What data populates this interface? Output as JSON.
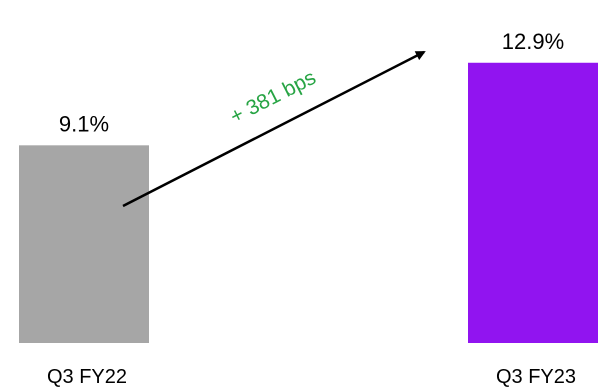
{
  "chart_data": {
    "type": "bar",
    "categories": [
      "Q3 FY22",
      "Q3 FY23"
    ],
    "values": [
      9.1,
      12.9
    ],
    "data_labels": [
      "9.1%",
      "12.9%"
    ],
    "unit": "%",
    "colors": [
      "#a6a6a6",
      "#9114f0"
    ],
    "annotation": {
      "text": "+ 381 bps",
      "color": "#27a444",
      "arrow_color": "#000000"
    },
    "ylim": [
      0,
      14.5
    ],
    "grid": false,
    "legend": "none"
  }
}
